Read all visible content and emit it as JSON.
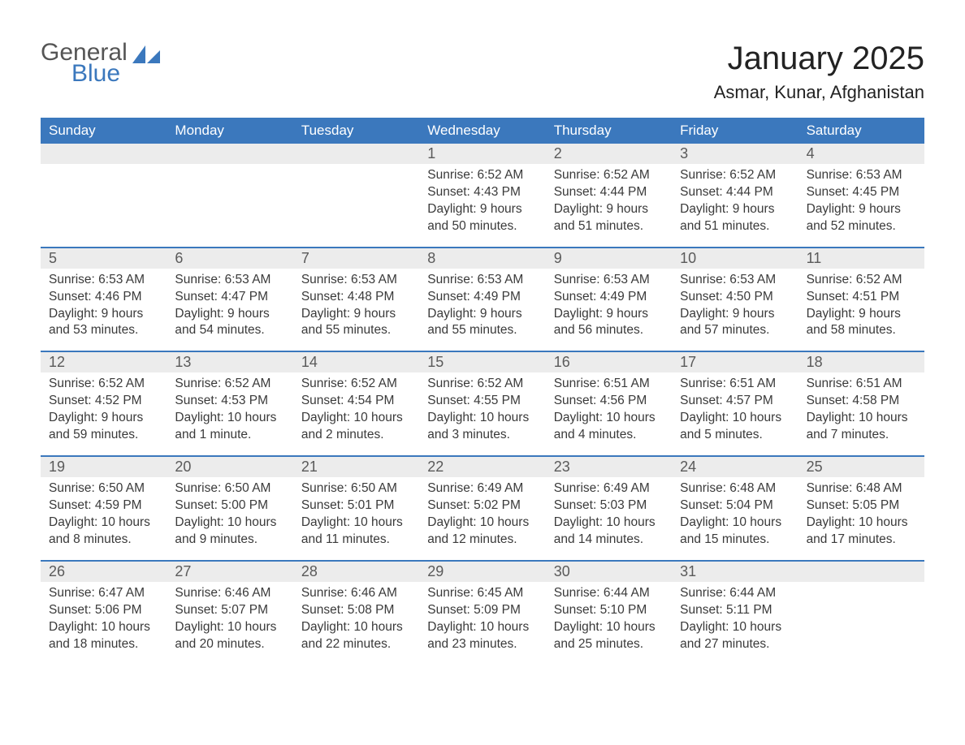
{
  "logo": {
    "text1": "General",
    "text2": "Blue",
    "color_general": "#555555",
    "color_blue": "#3b78bd",
    "fontsize": 30
  },
  "header": {
    "month_title": "January 2025",
    "location": "Asmar, Kunar, Afghanistan",
    "title_fontsize": 40,
    "location_fontsize": 22
  },
  "calendar": {
    "type": "table",
    "header_bg": "#3b78bd",
    "header_fg": "#ffffff",
    "daynum_bg": "#ececec",
    "week_border": "#3b78bd",
    "text_color": "#3a3a3a",
    "background_color": "#ffffff",
    "columns": [
      "Sunday",
      "Monday",
      "Tuesday",
      "Wednesday",
      "Thursday",
      "Friday",
      "Saturday"
    ],
    "weeks": [
      [
        {
          "n": "",
          "sunrise": "",
          "sunset": "",
          "daylight": ""
        },
        {
          "n": "",
          "sunrise": "",
          "sunset": "",
          "daylight": ""
        },
        {
          "n": "",
          "sunrise": "",
          "sunset": "",
          "daylight": ""
        },
        {
          "n": "1",
          "sunrise": "Sunrise: 6:52 AM",
          "sunset": "Sunset: 4:43 PM",
          "daylight": "Daylight: 9 hours and 50 minutes."
        },
        {
          "n": "2",
          "sunrise": "Sunrise: 6:52 AM",
          "sunset": "Sunset: 4:44 PM",
          "daylight": "Daylight: 9 hours and 51 minutes."
        },
        {
          "n": "3",
          "sunrise": "Sunrise: 6:52 AM",
          "sunset": "Sunset: 4:44 PM",
          "daylight": "Daylight: 9 hours and 51 minutes."
        },
        {
          "n": "4",
          "sunrise": "Sunrise: 6:53 AM",
          "sunset": "Sunset: 4:45 PM",
          "daylight": "Daylight: 9 hours and 52 minutes."
        }
      ],
      [
        {
          "n": "5",
          "sunrise": "Sunrise: 6:53 AM",
          "sunset": "Sunset: 4:46 PM",
          "daylight": "Daylight: 9 hours and 53 minutes."
        },
        {
          "n": "6",
          "sunrise": "Sunrise: 6:53 AM",
          "sunset": "Sunset: 4:47 PM",
          "daylight": "Daylight: 9 hours and 54 minutes."
        },
        {
          "n": "7",
          "sunrise": "Sunrise: 6:53 AM",
          "sunset": "Sunset: 4:48 PM",
          "daylight": "Daylight: 9 hours and 55 minutes."
        },
        {
          "n": "8",
          "sunrise": "Sunrise: 6:53 AM",
          "sunset": "Sunset: 4:49 PM",
          "daylight": "Daylight: 9 hours and 55 minutes."
        },
        {
          "n": "9",
          "sunrise": "Sunrise: 6:53 AM",
          "sunset": "Sunset: 4:49 PM",
          "daylight": "Daylight: 9 hours and 56 minutes."
        },
        {
          "n": "10",
          "sunrise": "Sunrise: 6:53 AM",
          "sunset": "Sunset: 4:50 PM",
          "daylight": "Daylight: 9 hours and 57 minutes."
        },
        {
          "n": "11",
          "sunrise": "Sunrise: 6:52 AM",
          "sunset": "Sunset: 4:51 PM",
          "daylight": "Daylight: 9 hours and 58 minutes."
        }
      ],
      [
        {
          "n": "12",
          "sunrise": "Sunrise: 6:52 AM",
          "sunset": "Sunset: 4:52 PM",
          "daylight": "Daylight: 9 hours and 59 minutes."
        },
        {
          "n": "13",
          "sunrise": "Sunrise: 6:52 AM",
          "sunset": "Sunset: 4:53 PM",
          "daylight": "Daylight: 10 hours and 1 minute."
        },
        {
          "n": "14",
          "sunrise": "Sunrise: 6:52 AM",
          "sunset": "Sunset: 4:54 PM",
          "daylight": "Daylight: 10 hours and 2 minutes."
        },
        {
          "n": "15",
          "sunrise": "Sunrise: 6:52 AM",
          "sunset": "Sunset: 4:55 PM",
          "daylight": "Daylight: 10 hours and 3 minutes."
        },
        {
          "n": "16",
          "sunrise": "Sunrise: 6:51 AM",
          "sunset": "Sunset: 4:56 PM",
          "daylight": "Daylight: 10 hours and 4 minutes."
        },
        {
          "n": "17",
          "sunrise": "Sunrise: 6:51 AM",
          "sunset": "Sunset: 4:57 PM",
          "daylight": "Daylight: 10 hours and 5 minutes."
        },
        {
          "n": "18",
          "sunrise": "Sunrise: 6:51 AM",
          "sunset": "Sunset: 4:58 PM",
          "daylight": "Daylight: 10 hours and 7 minutes."
        }
      ],
      [
        {
          "n": "19",
          "sunrise": "Sunrise: 6:50 AM",
          "sunset": "Sunset: 4:59 PM",
          "daylight": "Daylight: 10 hours and 8 minutes."
        },
        {
          "n": "20",
          "sunrise": "Sunrise: 6:50 AM",
          "sunset": "Sunset: 5:00 PM",
          "daylight": "Daylight: 10 hours and 9 minutes."
        },
        {
          "n": "21",
          "sunrise": "Sunrise: 6:50 AM",
          "sunset": "Sunset: 5:01 PM",
          "daylight": "Daylight: 10 hours and 11 minutes."
        },
        {
          "n": "22",
          "sunrise": "Sunrise: 6:49 AM",
          "sunset": "Sunset: 5:02 PM",
          "daylight": "Daylight: 10 hours and 12 minutes."
        },
        {
          "n": "23",
          "sunrise": "Sunrise: 6:49 AM",
          "sunset": "Sunset: 5:03 PM",
          "daylight": "Daylight: 10 hours and 14 minutes."
        },
        {
          "n": "24",
          "sunrise": "Sunrise: 6:48 AM",
          "sunset": "Sunset: 5:04 PM",
          "daylight": "Daylight: 10 hours and 15 minutes."
        },
        {
          "n": "25",
          "sunrise": "Sunrise: 6:48 AM",
          "sunset": "Sunset: 5:05 PM",
          "daylight": "Daylight: 10 hours and 17 minutes."
        }
      ],
      [
        {
          "n": "26",
          "sunrise": "Sunrise: 6:47 AM",
          "sunset": "Sunset: 5:06 PM",
          "daylight": "Daylight: 10 hours and 18 minutes."
        },
        {
          "n": "27",
          "sunrise": "Sunrise: 6:46 AM",
          "sunset": "Sunset: 5:07 PM",
          "daylight": "Daylight: 10 hours and 20 minutes."
        },
        {
          "n": "28",
          "sunrise": "Sunrise: 6:46 AM",
          "sunset": "Sunset: 5:08 PM",
          "daylight": "Daylight: 10 hours and 22 minutes."
        },
        {
          "n": "29",
          "sunrise": "Sunrise: 6:45 AM",
          "sunset": "Sunset: 5:09 PM",
          "daylight": "Daylight: 10 hours and 23 minutes."
        },
        {
          "n": "30",
          "sunrise": "Sunrise: 6:44 AM",
          "sunset": "Sunset: 5:10 PM",
          "daylight": "Daylight: 10 hours and 25 minutes."
        },
        {
          "n": "31",
          "sunrise": "Sunrise: 6:44 AM",
          "sunset": "Sunset: 5:11 PM",
          "daylight": "Daylight: 10 hours and 27 minutes."
        },
        {
          "n": "",
          "sunrise": "",
          "sunset": "",
          "daylight": ""
        }
      ]
    ]
  }
}
